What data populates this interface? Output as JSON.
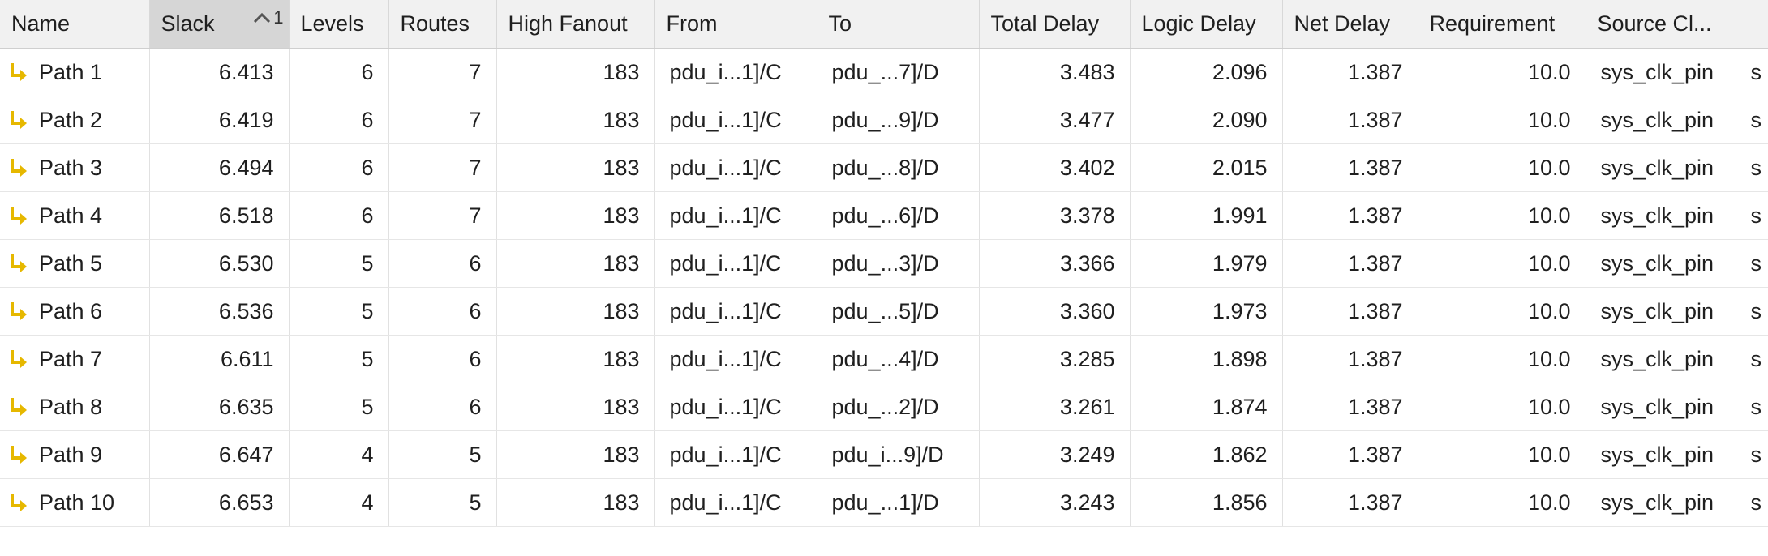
{
  "columns": {
    "name": "Name",
    "slack": "Slack",
    "sort_rank": "1",
    "levels": "Levels",
    "routes": "Routes",
    "high_fanout": "High Fanout",
    "from": "From",
    "to": "To",
    "total_delay": "Total Delay",
    "logic_delay": "Logic Delay",
    "net_delay": "Net Delay",
    "requirement": "Requirement",
    "source_clock": "Source Cl..."
  },
  "icons": {
    "path": "path-arrow-icon",
    "sort": "sort-ascending-icon"
  },
  "colors": {
    "path_icon": "#e6b800",
    "sorted_header": "#d6d6d6"
  },
  "rows": [
    {
      "name": "Path 1",
      "slack": "6.413",
      "levels": "6",
      "routes": "7",
      "high_fanout": "183",
      "from": "pdu_i...1]/C",
      "to": "pdu_...7]/D",
      "total_delay": "3.483",
      "logic_delay": "2.096",
      "net_delay": "1.387",
      "requirement": "10.0",
      "source_clock": "sys_clk_pin",
      "clipped": "s"
    },
    {
      "name": "Path 2",
      "slack": "6.419",
      "levels": "6",
      "routes": "7",
      "high_fanout": "183",
      "from": "pdu_i...1]/C",
      "to": "pdu_...9]/D",
      "total_delay": "3.477",
      "logic_delay": "2.090",
      "net_delay": "1.387",
      "requirement": "10.0",
      "source_clock": "sys_clk_pin",
      "clipped": "s"
    },
    {
      "name": "Path 3",
      "slack": "6.494",
      "levels": "6",
      "routes": "7",
      "high_fanout": "183",
      "from": "pdu_i...1]/C",
      "to": "pdu_...8]/D",
      "total_delay": "3.402",
      "logic_delay": "2.015",
      "net_delay": "1.387",
      "requirement": "10.0",
      "source_clock": "sys_clk_pin",
      "clipped": "s"
    },
    {
      "name": "Path 4",
      "slack": "6.518",
      "levels": "6",
      "routes": "7",
      "high_fanout": "183",
      "from": "pdu_i...1]/C",
      "to": "pdu_...6]/D",
      "total_delay": "3.378",
      "logic_delay": "1.991",
      "net_delay": "1.387",
      "requirement": "10.0",
      "source_clock": "sys_clk_pin",
      "clipped": "s"
    },
    {
      "name": "Path 5",
      "slack": "6.530",
      "levels": "5",
      "routes": "6",
      "high_fanout": "183",
      "from": "pdu_i...1]/C",
      "to": "pdu_...3]/D",
      "total_delay": "3.366",
      "logic_delay": "1.979",
      "net_delay": "1.387",
      "requirement": "10.0",
      "source_clock": "sys_clk_pin",
      "clipped": "s"
    },
    {
      "name": "Path 6",
      "slack": "6.536",
      "levels": "5",
      "routes": "6",
      "high_fanout": "183",
      "from": "pdu_i...1]/C",
      "to": "pdu_...5]/D",
      "total_delay": "3.360",
      "logic_delay": "1.973",
      "net_delay": "1.387",
      "requirement": "10.0",
      "source_clock": "sys_clk_pin",
      "clipped": "s"
    },
    {
      "name": "Path 7",
      "slack": "6.611",
      "levels": "5",
      "routes": "6",
      "high_fanout": "183",
      "from": "pdu_i...1]/C",
      "to": "pdu_...4]/D",
      "total_delay": "3.285",
      "logic_delay": "1.898",
      "net_delay": "1.387",
      "requirement": "10.0",
      "source_clock": "sys_clk_pin",
      "clipped": "s"
    },
    {
      "name": "Path 8",
      "slack": "6.635",
      "levels": "5",
      "routes": "6",
      "high_fanout": "183",
      "from": "pdu_i...1]/C",
      "to": "pdu_...2]/D",
      "total_delay": "3.261",
      "logic_delay": "1.874",
      "net_delay": "1.387",
      "requirement": "10.0",
      "source_clock": "sys_clk_pin",
      "clipped": "s"
    },
    {
      "name": "Path 9",
      "slack": "6.647",
      "levels": "4",
      "routes": "5",
      "high_fanout": "183",
      "from": "pdu_i...1]/C",
      "to": "pdu_i...9]/D",
      "total_delay": "3.249",
      "logic_delay": "1.862",
      "net_delay": "1.387",
      "requirement": "10.0",
      "source_clock": "sys_clk_pin",
      "clipped": "s"
    },
    {
      "name": "Path 10",
      "slack": "6.653",
      "levels": "4",
      "routes": "5",
      "high_fanout": "183",
      "from": "pdu_i...1]/C",
      "to": "pdu_...1]/D",
      "total_delay": "3.243",
      "logic_delay": "1.856",
      "net_delay": "1.387",
      "requirement": "10.0",
      "source_clock": "sys_clk_pin",
      "clipped": "s"
    }
  ]
}
